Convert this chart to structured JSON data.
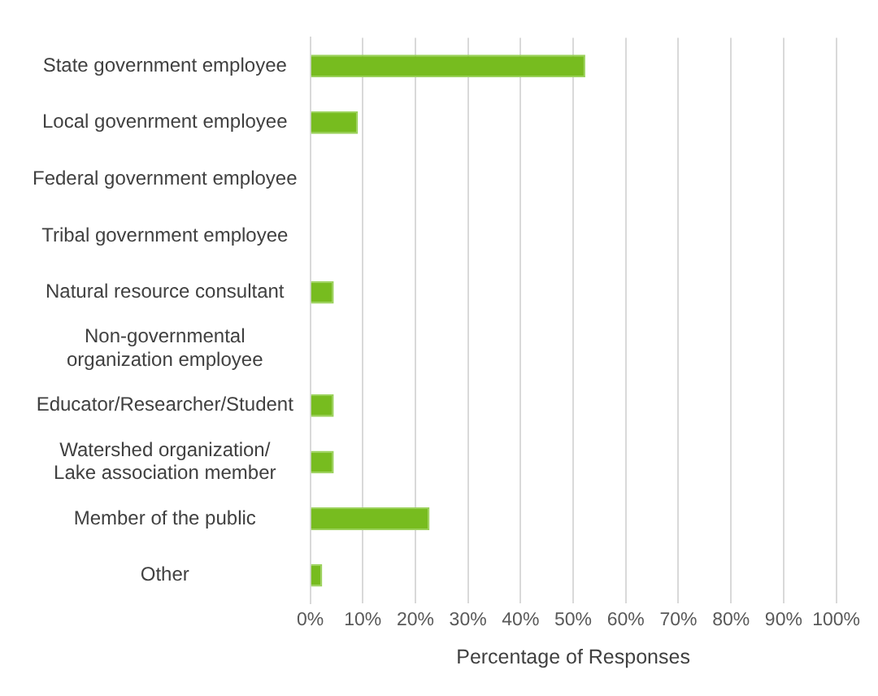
{
  "chart_data": {
    "type": "bar",
    "orientation": "horizontal",
    "xlabel": "Percentage of Responses",
    "categories": [
      "State government employee",
      "Local govenrment employee",
      "Federal government employee",
      "Tribal government employee",
      "Natural resource consultant",
      "Non-governmental\norganization employee",
      "Educator/Researcher/Student",
      "Watershed organization/\nLake association member",
      "Member of the public",
      "Other"
    ],
    "values": [
      52.3,
      9.1,
      0,
      0,
      4.5,
      0,
      4.5,
      4.5,
      22.7,
      2.3
    ],
    "color": "#77bc1f",
    "xlim": [
      0,
      100
    ],
    "xticks": [
      {
        "value": 0,
        "label": "0%"
      },
      {
        "value": 10,
        "label": "10%"
      },
      {
        "value": 20,
        "label": "20%"
      },
      {
        "value": 30,
        "label": "30%"
      },
      {
        "value": 40,
        "label": "40%"
      },
      {
        "value": 50,
        "label": "50%"
      },
      {
        "value": 60,
        "label": "60%"
      },
      {
        "value": 70,
        "label": "70%"
      },
      {
        "value": 80,
        "label": "80%"
      },
      {
        "value": 90,
        "label": "90%"
      },
      {
        "value": 100,
        "label": "100%"
      }
    ],
    "grid": "x"
  }
}
